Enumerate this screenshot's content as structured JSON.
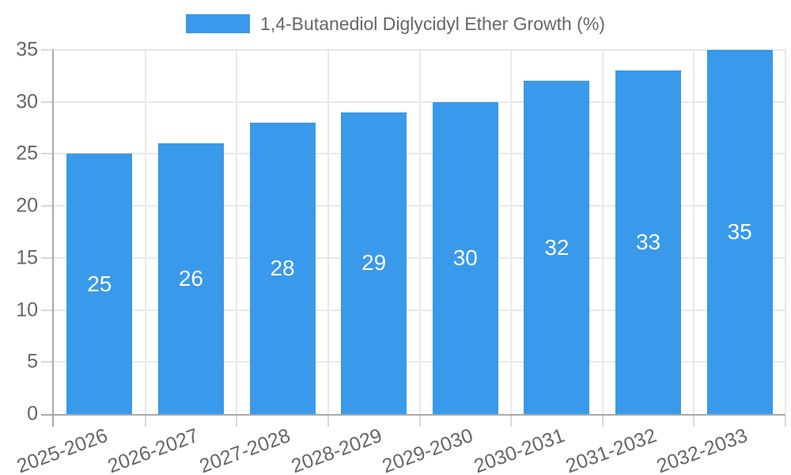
{
  "legend": {
    "label": "1,4-Butanediol Diglycidyl Ether Growth (%)"
  },
  "chart_data": {
    "type": "bar",
    "title": "1,4-Butanediol Diglycidyl Ether Growth (%)",
    "categories": [
      "2025-2026",
      "2026-2027",
      "2027-2028",
      "2028-2029",
      "2029-2030",
      "2030-2031",
      "2031-2032",
      "2032-2033"
    ],
    "values": [
      25,
      26,
      28,
      29,
      30,
      32,
      33,
      35
    ],
    "xlabel": "",
    "ylabel": "",
    "ylim": [
      0,
      35
    ],
    "yticks": [
      0,
      5,
      10,
      15,
      20,
      25,
      30,
      35
    ],
    "grid": true,
    "legend_position": "top",
    "x_label_rotation_deg": -20,
    "colors": {
      "bar": "#3999EA",
      "bar_label": "#FFFFFF",
      "axis": "#A9A9A9",
      "grid": "#E9E9E9",
      "tick": "#D9D9D9",
      "text": "#666666",
      "background": "#FFFFFF"
    }
  }
}
